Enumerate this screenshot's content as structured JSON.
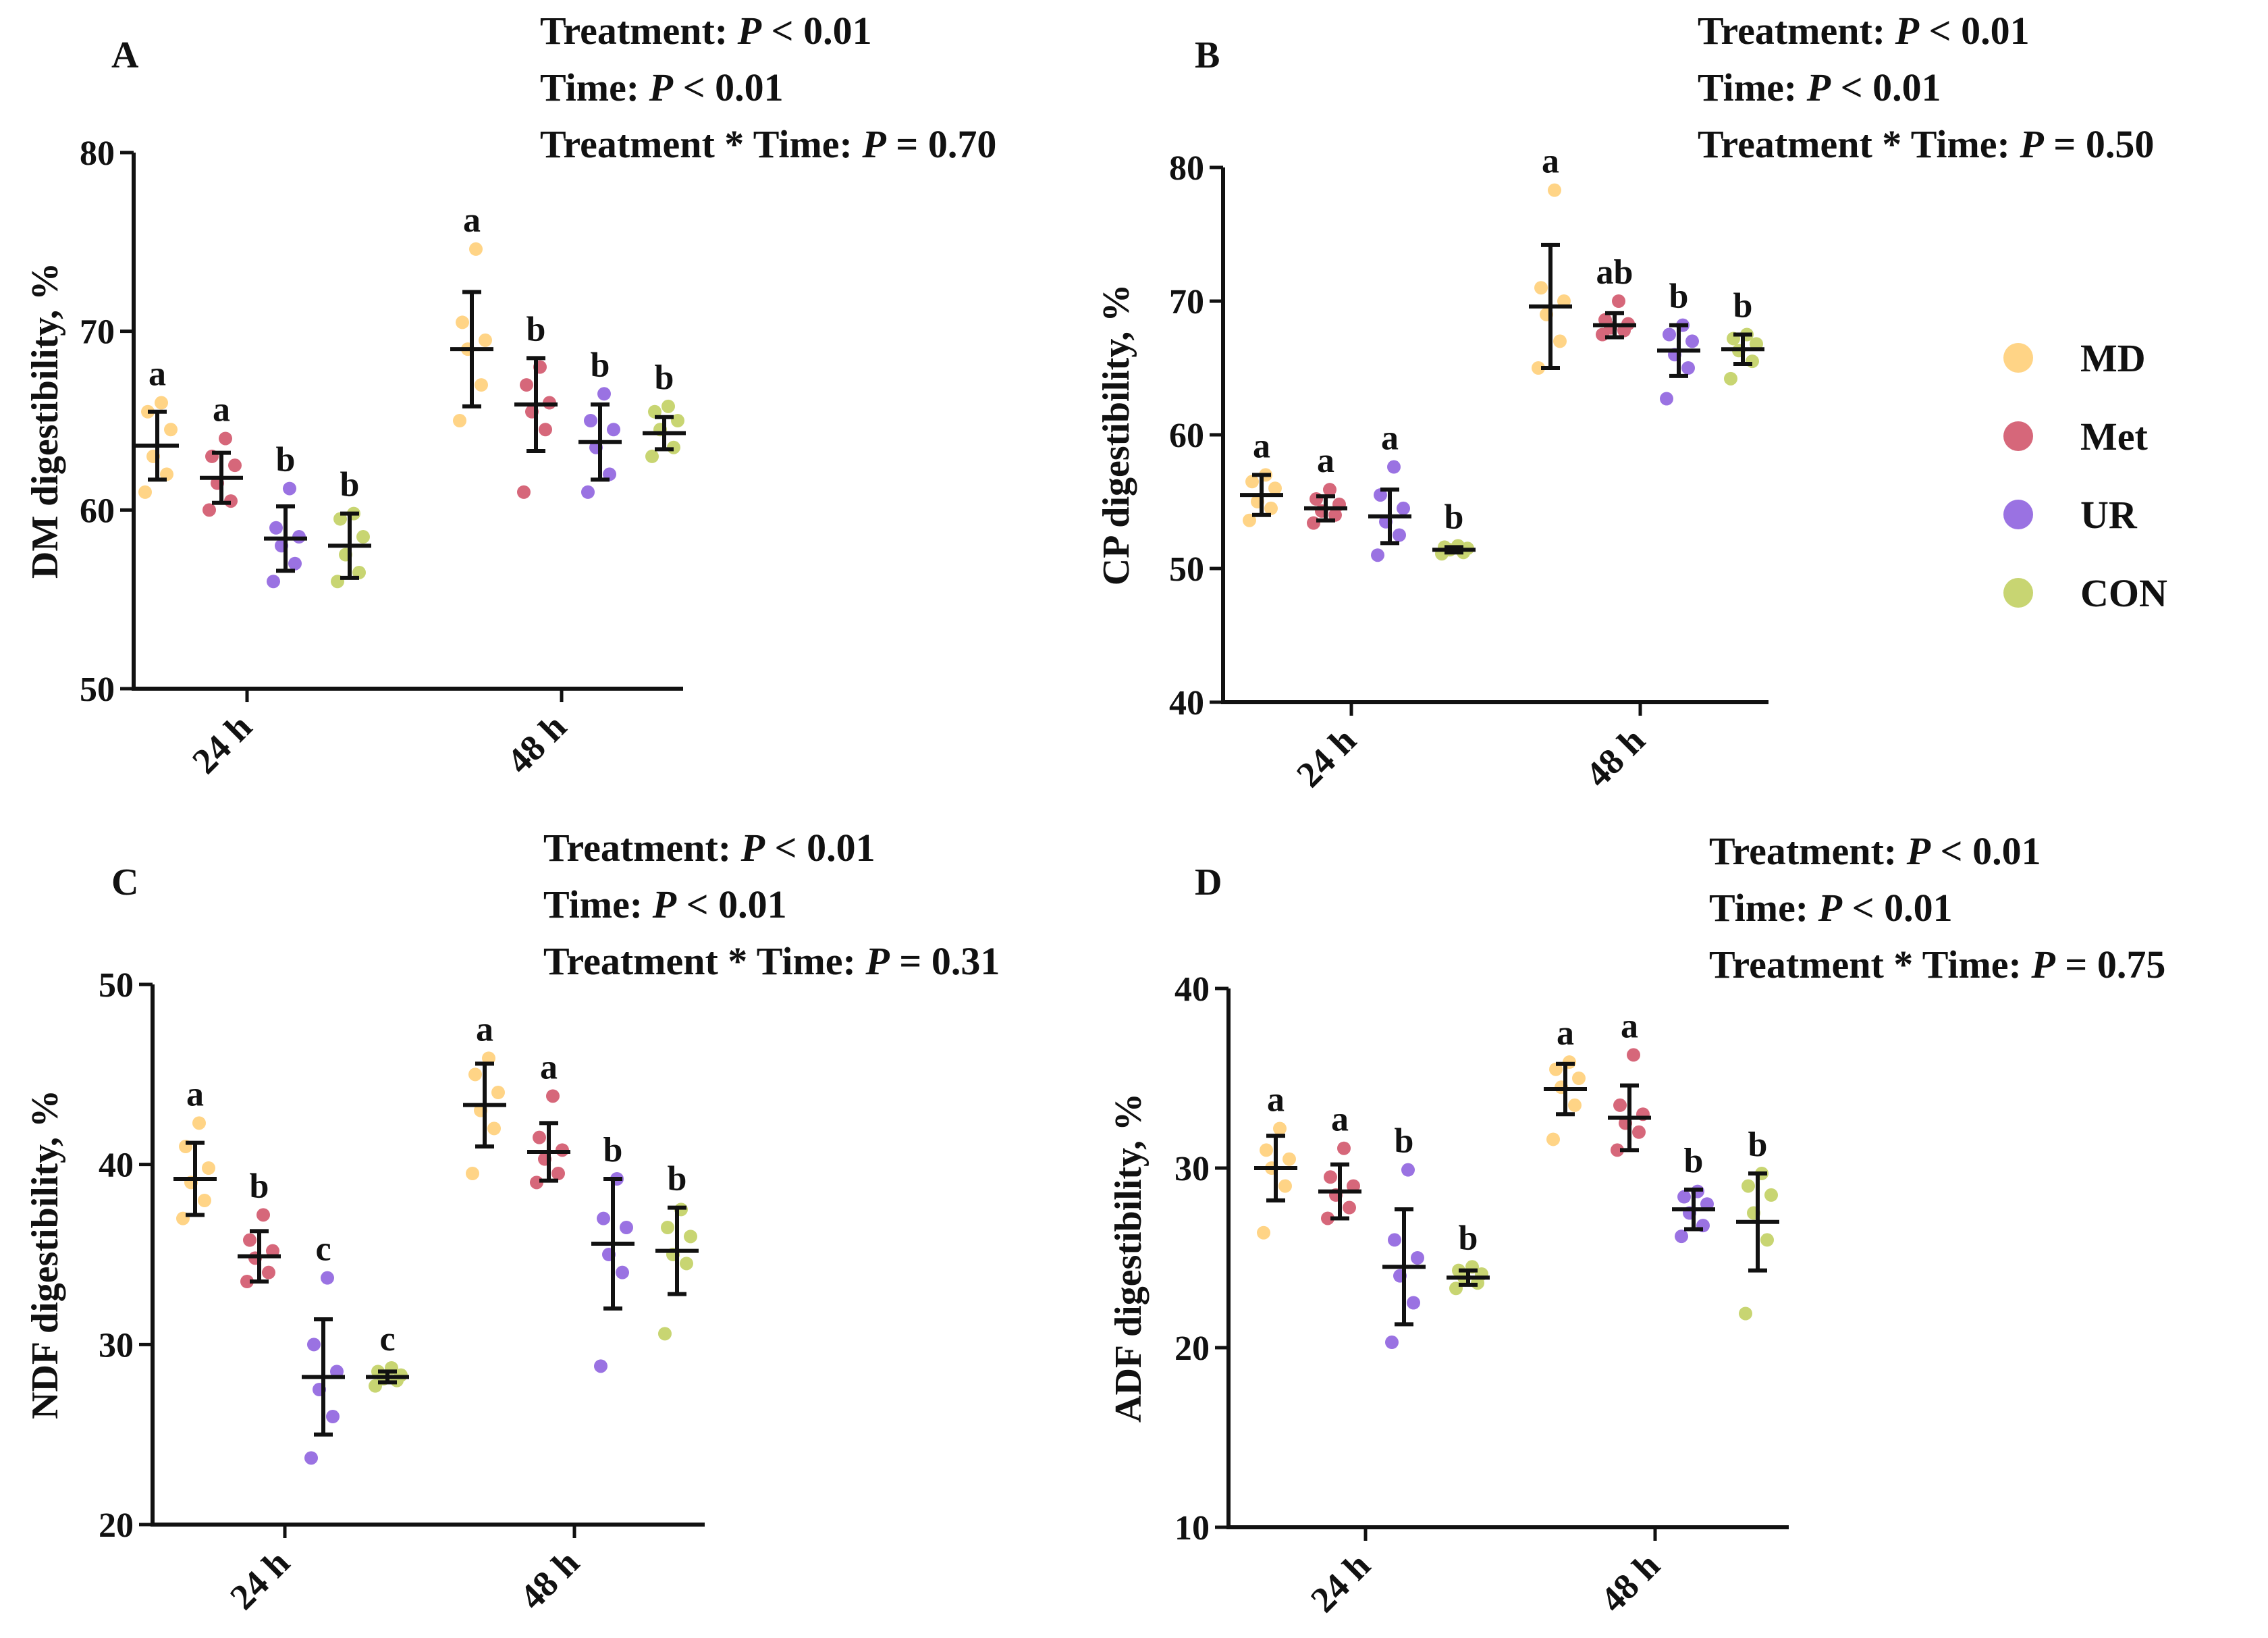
{
  "legend": {
    "items": [
      {
        "label": "MD",
        "color": "#FFD486"
      },
      {
        "label": "Met",
        "color": "#D6677A"
      },
      {
        "label": "UR",
        "color": "#9A72E2"
      },
      {
        "label": "CON",
        "color": "#C8D572"
      }
    ]
  },
  "chart_data": [
    {
      "type": "scatter",
      "panel": "A",
      "title": "",
      "stats": {
        "treatment": {
          "label": "Treatment: ",
          "p": "P",
          "rest": " < 0.01"
        },
        "time": {
          "label": "Time: ",
          "p": "P",
          "rest": " < 0.01"
        },
        "interaction": {
          "label": "Treatment * Time: ",
          "p": "P",
          "rest": " = 0.70"
        }
      },
      "ylabel": "DM digestibility, %",
      "xlabel": "",
      "ylim": [
        50,
        80
      ],
      "yticks": [
        50,
        60,
        70,
        80
      ],
      "categories": [
        "24 h",
        "48 h"
      ],
      "series": [
        {
          "name": "MD",
          "means": [
            63.6,
            69.0
          ],
          "sd": [
            1.9,
            3.2
          ],
          "letters": [
            "a",
            "a"
          ],
          "points": [
            [
              61.0,
              62.0,
              63.0,
              64.5,
              65.5,
              66.0
            ],
            [
              65.0,
              67.0,
              69.0,
              69.5,
              70.5,
              74.6
            ]
          ]
        },
        {
          "name": "Met",
          "means": [
            61.8,
            65.9
          ],
          "sd": [
            1.4,
            2.6
          ],
          "letters": [
            "a",
            "b"
          ],
          "points": [
            [
              60.0,
              60.5,
              61.5,
              62.5,
              63.0,
              64.0
            ],
            [
              61.0,
              64.5,
              65.5,
              66.0,
              67.0,
              68.0
            ]
          ]
        },
        {
          "name": "UR",
          "means": [
            58.4,
            63.8
          ],
          "sd": [
            1.8,
            2.1
          ],
          "letters": [
            "b",
            "b"
          ],
          "points": [
            [
              56.0,
              57.0,
              58.0,
              58.5,
              59.0,
              61.2
            ],
            [
              61.0,
              62.0,
              63.5,
              64.5,
              65.0,
              66.5
            ]
          ]
        },
        {
          "name": "CON",
          "means": [
            58.0,
            64.3
          ],
          "sd": [
            1.8,
            0.9
          ],
          "letters": [
            "b",
            "b"
          ],
          "points": [
            [
              56.0,
              56.5,
              57.5,
              58.5,
              59.5,
              59.8
            ],
            [
              63.0,
              63.5,
              64.5,
              65.0,
              65.5,
              65.8
            ]
          ]
        }
      ]
    },
    {
      "type": "scatter",
      "panel": "B",
      "title": "",
      "stats": {
        "treatment": {
          "label": "Treatment: ",
          "p": "P",
          "rest": " < 0.01"
        },
        "time": {
          "label": "Time: ",
          "p": "P",
          "rest": " < 0.01"
        },
        "interaction": {
          "label": "Treatment * Time: ",
          "p": "P",
          "rest": " = 0.50"
        }
      },
      "ylabel": "CP digestibility, %",
      "xlabel": "",
      "ylim": [
        40,
        80
      ],
      "yticks": [
        40,
        50,
        60,
        70,
        80
      ],
      "categories": [
        "24 h",
        "48 h"
      ],
      "series": [
        {
          "name": "MD",
          "means": [
            55.5,
            69.6
          ],
          "sd": [
            1.5,
            4.6
          ],
          "letters": [
            "a",
            "a"
          ],
          "points": [
            [
              53.6,
              54.5,
              55.0,
              56.0,
              56.5,
              57.0
            ],
            [
              65.0,
              67.0,
              69.0,
              70.0,
              71.0,
              78.3
            ]
          ]
        },
        {
          "name": "Met",
          "means": [
            54.5,
            68.2
          ],
          "sd": [
            0.9,
            0.9
          ],
          "letters": [
            "a",
            "ab"
          ],
          "points": [
            [
              53.4,
              54.0,
              54.3,
              54.8,
              55.2,
              55.9
            ],
            [
              67.5,
              67.8,
              68.0,
              68.3,
              68.6,
              70.0
            ]
          ]
        },
        {
          "name": "UR",
          "means": [
            53.9,
            66.3
          ],
          "sd": [
            2.0,
            1.9
          ],
          "letters": [
            "a",
            "b"
          ],
          "points": [
            [
              51.0,
              52.5,
              53.5,
              54.5,
              55.5,
              57.6
            ],
            [
              62.7,
              65.0,
              66.0,
              67.0,
              67.5,
              68.2
            ]
          ]
        },
        {
          "name": "CON",
          "means": [
            51.4,
            66.4
          ],
          "sd": [
            0.2,
            1.1
          ],
          "letters": [
            "b",
            "b"
          ],
          "points": [
            [
              51.1,
              51.2,
              51.4,
              51.5,
              51.6,
              51.7
            ],
            [
              64.2,
              65.5,
              66.3,
              66.8,
              67.2,
              67.5
            ]
          ]
        }
      ]
    },
    {
      "type": "scatter",
      "panel": "C",
      "title": "",
      "stats": {
        "treatment": {
          "label": "Treatment: ",
          "p": "P",
          "rest": " < 0.01"
        },
        "time": {
          "label": "Time: ",
          "p": "P",
          "rest": " < 0.01"
        },
        "interaction": {
          "label": "Treatment * Time: ",
          "p": "P",
          "rest": " = 0.31"
        }
      },
      "ylabel": "NDF digestibility, %",
      "xlabel": "",
      "ylim": [
        20,
        50
      ],
      "yticks": [
        20,
        30,
        40,
        50
      ],
      "categories": [
        "24 h",
        "48 h"
      ],
      "series": [
        {
          "name": "MD",
          "means": [
            39.2,
            43.3
          ],
          "sd": [
            2.0,
            2.3
          ],
          "letters": [
            "a",
            "a"
          ],
          "points": [
            [
              37.0,
              38.0,
              39.0,
              39.8,
              41.0,
              42.3
            ],
            [
              39.5,
              42.0,
              43.0,
              44.0,
              45.0,
              45.9
            ]
          ]
        },
        {
          "name": "Met",
          "means": [
            34.9,
            40.7
          ],
          "sd": [
            1.4,
            1.6
          ],
          "letters": [
            "b",
            "a"
          ],
          "points": [
            [
              33.5,
              34.0,
              34.8,
              35.2,
              35.8,
              37.2
            ],
            [
              39.0,
              39.5,
              40.3,
              40.8,
              41.5,
              43.8
            ]
          ]
        },
        {
          "name": "UR",
          "means": [
            28.2,
            35.6
          ],
          "sd": [
            3.2,
            3.6
          ],
          "letters": [
            "c",
            "b"
          ],
          "points": [
            [
              23.7,
              26.0,
              27.5,
              28.5,
              30.0,
              33.7
            ],
            [
              28.8,
              34.0,
              35.0,
              36.5,
              37.0,
              39.2
            ]
          ]
        },
        {
          "name": "CON",
          "means": [
            28.2,
            35.2
          ],
          "sd": [
            0.3,
            2.4
          ],
          "letters": [
            "c",
            "b"
          ],
          "points": [
            [
              27.7,
              28.0,
              28.1,
              28.3,
              28.5,
              28.7
            ],
            [
              30.6,
              34.5,
              35.0,
              36.0,
              36.5,
              37.5
            ]
          ]
        }
      ]
    },
    {
      "type": "scatter",
      "panel": "D",
      "title": "",
      "stats": {
        "treatment": {
          "label": "Treatment: ",
          "p": "P",
          "rest": " < 0.01"
        },
        "time": {
          "label": "Time: ",
          "p": "P",
          "rest": " < 0.01"
        },
        "interaction": {
          "label": "Treatment * Time: ",
          "p": "P",
          "rest": " = 0.75"
        }
      },
      "ylabel": "ADF digestibility, %",
      "xlabel": "",
      "ylim": [
        10,
        40
      ],
      "yticks": [
        10,
        20,
        30,
        40
      ],
      "categories": [
        "24 h",
        "48 h"
      ],
      "series": [
        {
          "name": "MD",
          "means": [
            30.0,
            34.4
          ],
          "sd": [
            1.8,
            1.4
          ],
          "letters": [
            "a",
            "a"
          ],
          "points": [
            [
              26.4,
              29.0,
              30.0,
              30.5,
              31.0,
              32.2
            ],
            [
              31.6,
              33.5,
              34.5,
              35.0,
              35.5,
              35.9
            ]
          ]
        },
        {
          "name": "Met",
          "means": [
            28.7,
            32.8
          ],
          "sd": [
            1.5,
            1.8
          ],
          "letters": [
            "a",
            "a"
          ],
          "points": [
            [
              27.2,
              27.8,
              28.5,
              29.0,
              29.5,
              31.1
            ],
            [
              31.0,
              32.0,
              32.5,
              33.0,
              33.5,
              36.3
            ]
          ]
        },
        {
          "name": "UR",
          "means": [
            24.5,
            27.7
          ],
          "sd": [
            3.2,
            1.1
          ],
          "letters": [
            "b",
            "b"
          ],
          "points": [
            [
              20.3,
              22.5,
              24.0,
              25.0,
              26.0,
              29.9
            ],
            [
              26.2,
              26.8,
              27.5,
              28.0,
              28.4,
              28.7
            ]
          ]
        },
        {
          "name": "CON",
          "means": [
            23.9,
            27.0
          ],
          "sd": [
            0.4,
            2.7
          ],
          "letters": [
            "b",
            "b"
          ],
          "points": [
            [
              23.3,
              23.6,
              23.9,
              24.1,
              24.3,
              24.5
            ],
            [
              21.9,
              26.0,
              27.5,
              28.5,
              29.0,
              29.7
            ]
          ]
        }
      ]
    }
  ]
}
